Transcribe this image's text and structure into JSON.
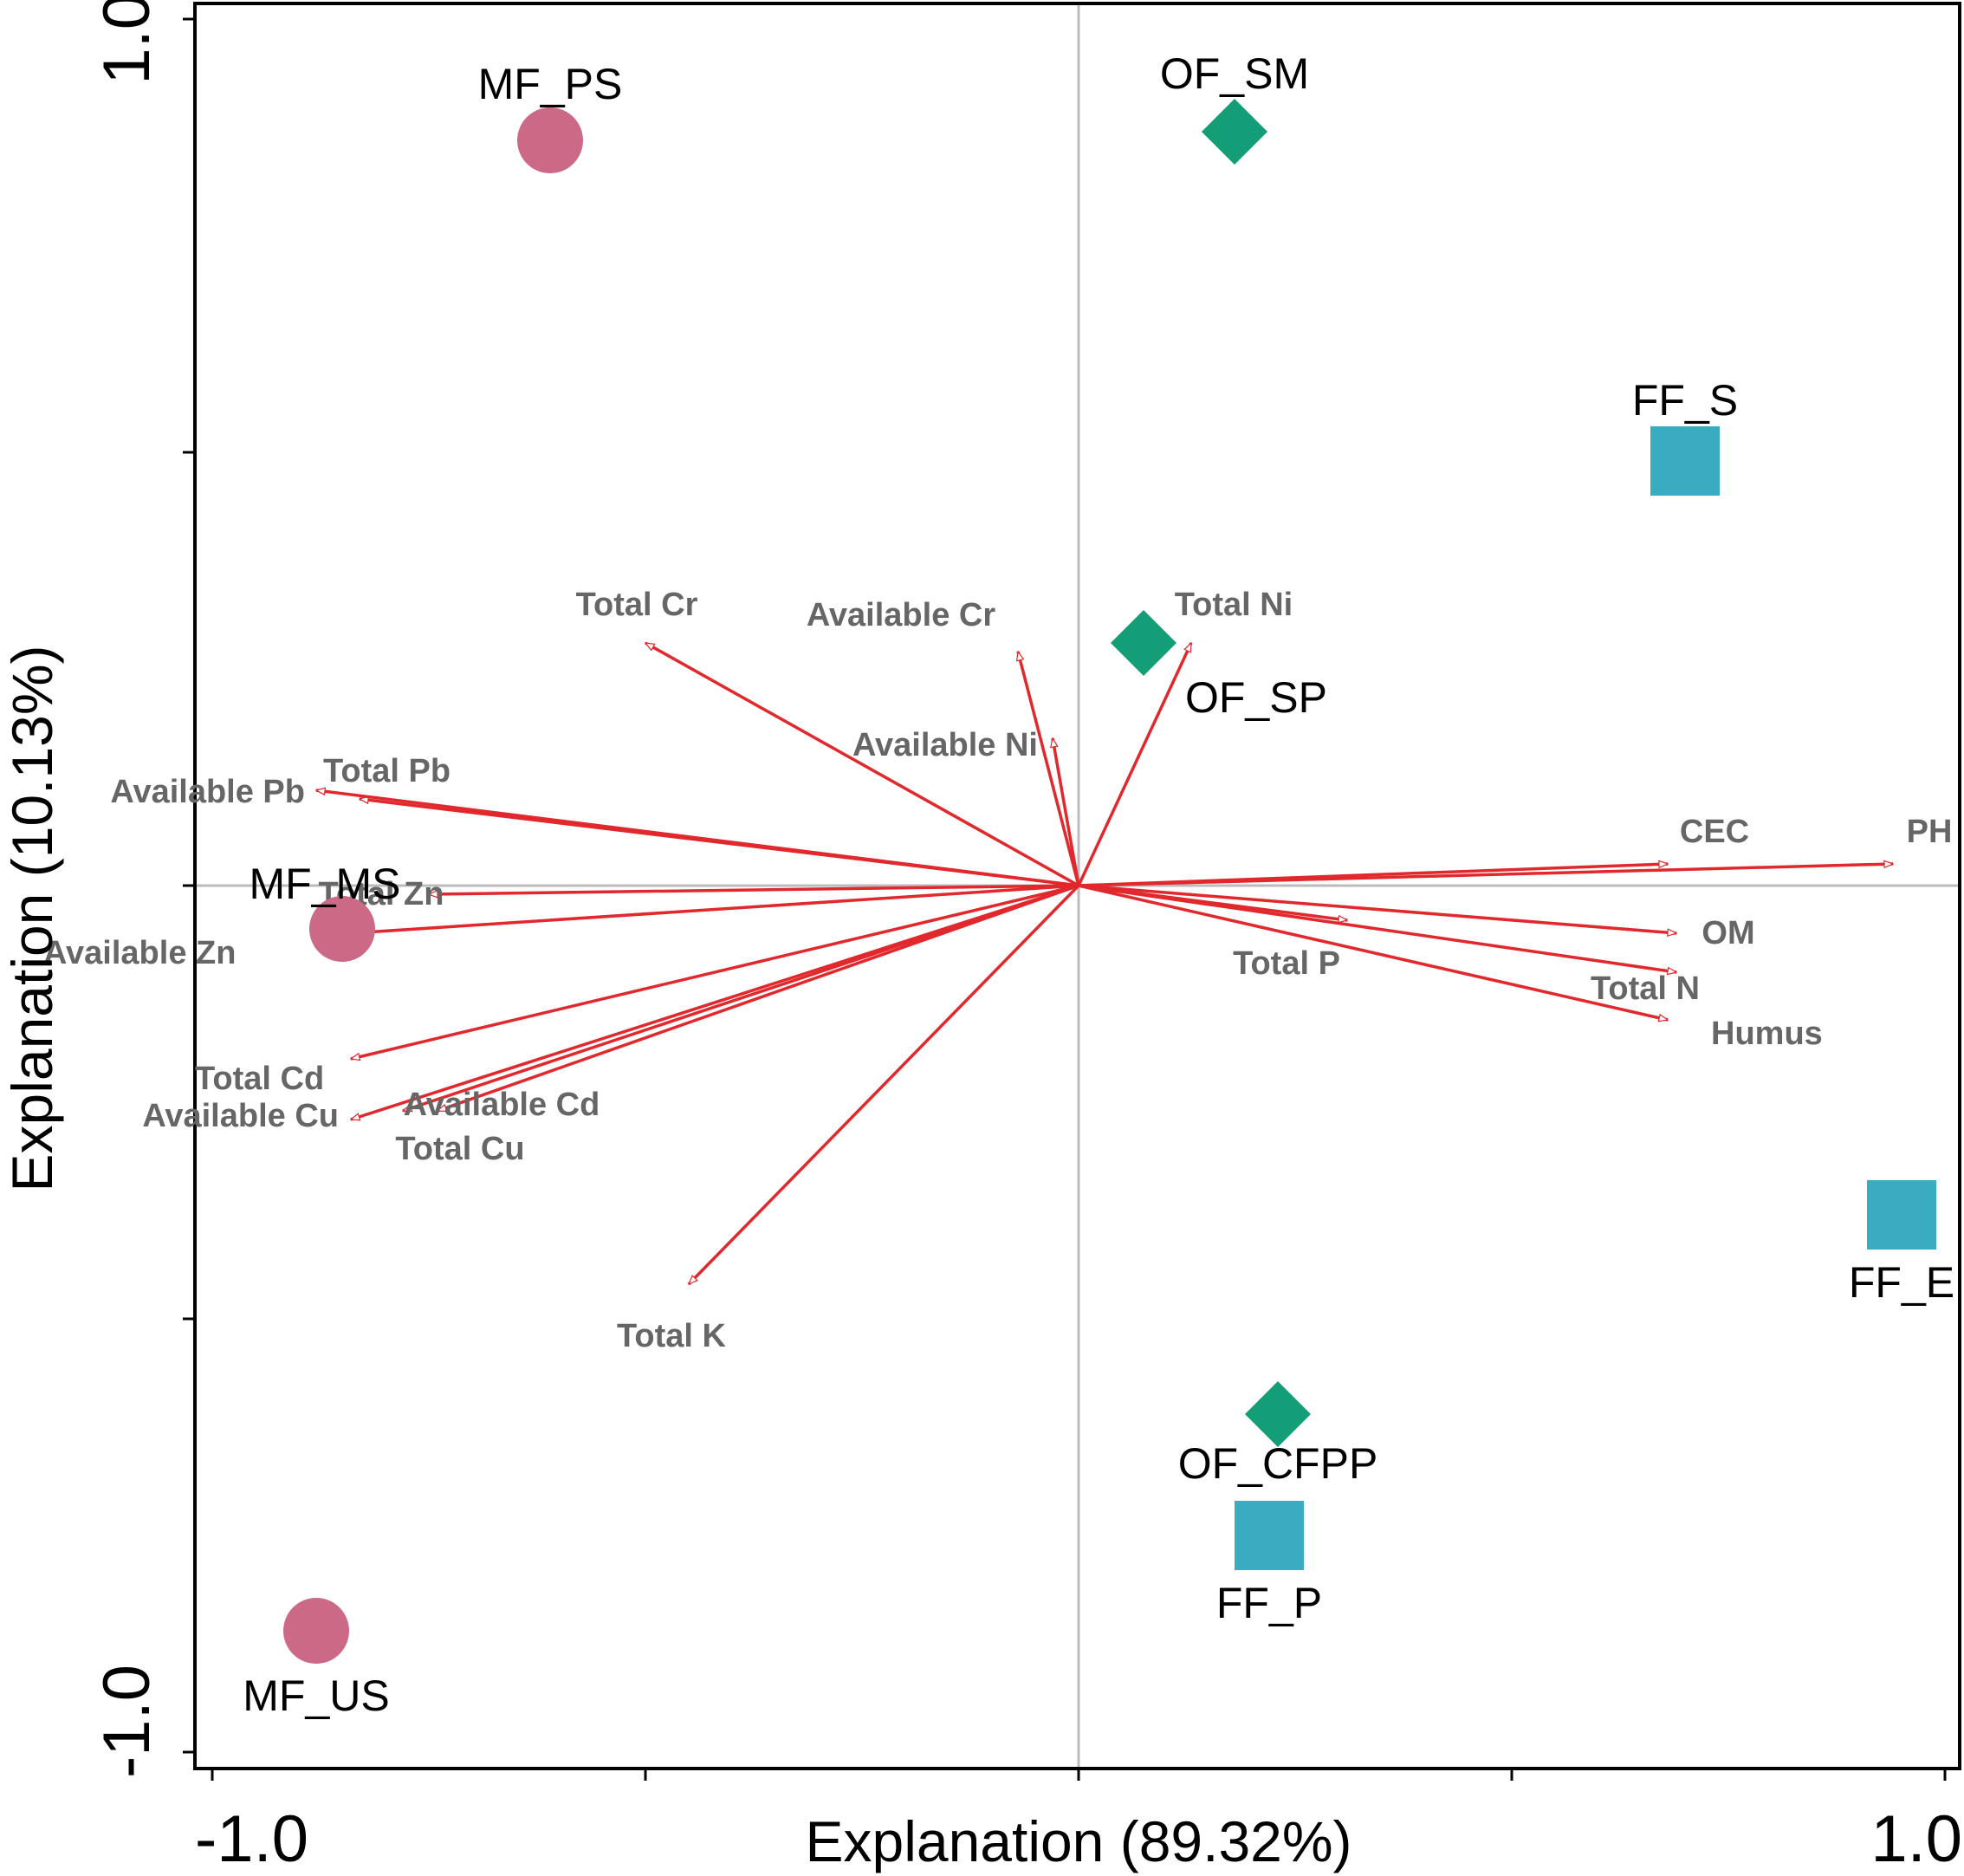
{
  "chart_data": {
    "type": "scatter",
    "subtype": "RDA biplot",
    "xlabel": "Explanation (89.32%)",
    "ylabel": "Explanation (10.13%)",
    "xlim": [
      -1.05,
      1.03
    ],
    "ylim": [
      -1.03,
      1.02
    ],
    "x_tick_values": [
      -1.0,
      -0.5,
      0.0,
      0.5,
      1.0
    ],
    "y_tick_values": [
      -1.0,
      -0.5,
      0.0,
      0.5,
      1.0
    ],
    "x_tick_labels": [
      "-1.0",
      "1.0"
    ],
    "y_tick_labels": [
      "-1.0",
      "1.0"
    ],
    "colors": {
      "arrow": "#e0282d",
      "MF": "#cc6986",
      "OF": "#139e78",
      "FF": "#3aacc2",
      "zero_line": "#bbbbbb",
      "variable_label": "#666666"
    },
    "sites": [
      {
        "name": "MF_PS",
        "group": "MF",
        "shape": "circle",
        "x": -0.61,
        "y": 0.86
      },
      {
        "name": "MF_MS",
        "group": "MF",
        "shape": "circle",
        "x": -0.85,
        "y": -0.05
      },
      {
        "name": "MF_US",
        "group": "MF",
        "shape": "circle",
        "x": -0.88,
        "y": -0.86
      },
      {
        "name": "OF_SM",
        "group": "OF",
        "shape": "diamond",
        "x": 0.18,
        "y": 0.87
      },
      {
        "name": "OF_SP",
        "group": "OF",
        "shape": "diamond",
        "x": 0.075,
        "y": 0.28
      },
      {
        "name": "OF_CFPP",
        "group": "OF",
        "shape": "diamond",
        "x": 0.23,
        "y": -0.61
      },
      {
        "name": "FF_S",
        "group": "FF",
        "shape": "square",
        "x": 0.7,
        "y": 0.49
      },
      {
        "name": "FF_E",
        "group": "FF",
        "shape": "square",
        "x": 0.95,
        "y": -0.38
      },
      {
        "name": "FF_P",
        "group": "FF",
        "shape": "square",
        "x": 0.22,
        "y": -0.75
      }
    ],
    "variables": [
      {
        "name": "Total Cr",
        "x": -0.5,
        "y": 0.28
      },
      {
        "name": "Available Cr",
        "x": -0.07,
        "y": 0.27
      },
      {
        "name": "Available Ni",
        "x": -0.03,
        "y": 0.17
      },
      {
        "name": "Total Ni",
        "x": 0.13,
        "y": 0.28
      },
      {
        "name": "Total Pb",
        "x": -0.83,
        "y": 0.1
      },
      {
        "name": "Available Pb",
        "x": -0.88,
        "y": 0.11
      },
      {
        "name": "Total Zn",
        "x": -0.75,
        "y": -0.01
      },
      {
        "name": "Available Zn",
        "x": -0.84,
        "y": -0.055
      },
      {
        "name": "Total Cd",
        "x": -0.84,
        "y": -0.2
      },
      {
        "name": "Available Cd",
        "x": -0.74,
        "y": -0.26
      },
      {
        "name": "Available Cu",
        "x": -0.84,
        "y": -0.27
      },
      {
        "name": "Total Cu",
        "x": -0.78,
        "y": -0.26
      },
      {
        "name": "Total K",
        "x": -0.45,
        "y": -0.46
      },
      {
        "name": "CEC",
        "x": 0.68,
        "y": 0.025
      },
      {
        "name": "PH",
        "x": 0.94,
        "y": 0.025
      },
      {
        "name": "OM",
        "x": 0.69,
        "y": -0.055
      },
      {
        "name": "Total P",
        "x": 0.31,
        "y": -0.04
      },
      {
        "name": "Total N",
        "x": 0.69,
        "y": -0.1
      },
      {
        "name": "Humus",
        "x": 0.68,
        "y": -0.155
      }
    ]
  }
}
